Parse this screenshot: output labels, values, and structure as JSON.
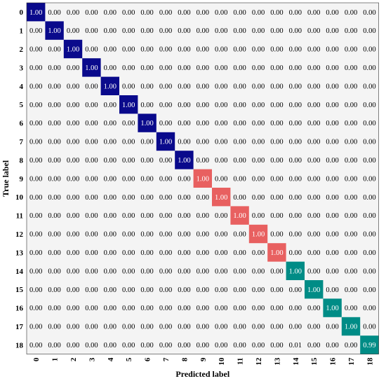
{
  "chart_data": {
    "type": "heatmap",
    "xlabel": "Predicted label",
    "ylabel": "True label",
    "x_categories": [
      "0",
      "1",
      "2",
      "3",
      "4",
      "5",
      "6",
      "7",
      "8",
      "9",
      "10",
      "11",
      "12",
      "13",
      "14",
      "15",
      "16",
      "17",
      "18"
    ],
    "y_categories": [
      "0",
      "1",
      "2",
      "3",
      "4",
      "5",
      "6",
      "7",
      "8",
      "9",
      "10",
      "11",
      "12",
      "13",
      "14",
      "15",
      "16",
      "17",
      "18"
    ],
    "matrix": [
      [
        1.0,
        0.0,
        0.0,
        0.0,
        0.0,
        0.0,
        0.0,
        0.0,
        0.0,
        0.0,
        0.0,
        0.0,
        0.0,
        0.0,
        0.0,
        0.0,
        0.0,
        0.0,
        0.0
      ],
      [
        0.0,
        1.0,
        0.0,
        0.0,
        0.0,
        0.0,
        0.0,
        0.0,
        0.0,
        0.0,
        0.0,
        0.0,
        0.0,
        0.0,
        0.0,
        0.0,
        0.0,
        0.0,
        0.0
      ],
      [
        0.0,
        0.0,
        1.0,
        0.0,
        0.0,
        0.0,
        0.0,
        0.0,
        0.0,
        0.0,
        0.0,
        0.0,
        0.0,
        0.0,
        0.0,
        0.0,
        0.0,
        0.0,
        0.0
      ],
      [
        0.0,
        0.0,
        0.0,
        1.0,
        0.0,
        0.0,
        0.0,
        0.0,
        0.0,
        0.0,
        0.0,
        0.0,
        0.0,
        0.0,
        0.0,
        0.0,
        0.0,
        0.0,
        0.0
      ],
      [
        0.0,
        0.0,
        0.0,
        0.0,
        1.0,
        0.0,
        0.0,
        0.0,
        0.0,
        0.0,
        0.0,
        0.0,
        0.0,
        0.0,
        0.0,
        0.0,
        0.0,
        0.0,
        0.0
      ],
      [
        0.0,
        0.0,
        0.0,
        0.0,
        0.0,
        1.0,
        0.0,
        0.0,
        0.0,
        0.0,
        0.0,
        0.0,
        0.0,
        0.0,
        0.0,
        0.0,
        0.0,
        0.0,
        0.0
      ],
      [
        0.0,
        0.0,
        0.0,
        0.0,
        0.0,
        0.0,
        1.0,
        0.0,
        0.0,
        0.0,
        0.0,
        0.0,
        0.0,
        0.0,
        0.0,
        0.0,
        0.0,
        0.0,
        0.0
      ],
      [
        0.0,
        0.0,
        0.0,
        0.0,
        0.0,
        0.0,
        0.0,
        1.0,
        0.0,
        0.0,
        0.0,
        0.0,
        0.0,
        0.0,
        0.0,
        0.0,
        0.0,
        0.0,
        0.0
      ],
      [
        0.0,
        0.0,
        0.0,
        0.0,
        0.0,
        0.0,
        0.0,
        0.0,
        1.0,
        0.0,
        0.0,
        0.0,
        0.0,
        0.0,
        0.0,
        0.0,
        0.0,
        0.0,
        0.0
      ],
      [
        0.0,
        0.0,
        0.0,
        0.0,
        0.0,
        0.0,
        0.0,
        0.0,
        0.0,
        1.0,
        0.0,
        0.0,
        0.0,
        0.0,
        0.0,
        0.0,
        0.0,
        0.0,
        0.0
      ],
      [
        0.0,
        0.0,
        0.0,
        0.0,
        0.0,
        0.0,
        0.0,
        0.0,
        0.0,
        0.0,
        1.0,
        0.0,
        0.0,
        0.0,
        0.0,
        0.0,
        0.0,
        0.0,
        0.0
      ],
      [
        0.0,
        0.0,
        0.0,
        0.0,
        0.0,
        0.0,
        0.0,
        0.0,
        0.0,
        0.0,
        0.0,
        1.0,
        0.0,
        0.0,
        0.0,
        0.0,
        0.0,
        0.0,
        0.0
      ],
      [
        0.0,
        0.0,
        0.0,
        0.0,
        0.0,
        0.0,
        0.0,
        0.0,
        0.0,
        0.0,
        0.0,
        0.0,
        1.0,
        0.0,
        0.0,
        0.0,
        0.0,
        0.0,
        0.0
      ],
      [
        0.0,
        0.0,
        0.0,
        0.0,
        0.0,
        0.0,
        0.0,
        0.0,
        0.0,
        0.0,
        0.0,
        0.0,
        0.0,
        1.0,
        0.0,
        0.0,
        0.0,
        0.0,
        0.0
      ],
      [
        0.0,
        0.0,
        0.0,
        0.0,
        0.0,
        0.0,
        0.0,
        0.0,
        0.0,
        0.0,
        0.0,
        0.0,
        0.0,
        0.0,
        1.0,
        0.0,
        0.0,
        0.0,
        0.0
      ],
      [
        0.0,
        0.0,
        0.0,
        0.0,
        0.0,
        0.0,
        0.0,
        0.0,
        0.0,
        0.0,
        0.0,
        0.0,
        0.0,
        0.0,
        0.0,
        1.0,
        0.0,
        0.0,
        0.0
      ],
      [
        0.0,
        0.0,
        0.0,
        0.0,
        0.0,
        0.0,
        0.0,
        0.0,
        0.0,
        0.0,
        0.0,
        0.0,
        0.0,
        0.0,
        0.0,
        0.0,
        1.0,
        0.0,
        0.0
      ],
      [
        0.0,
        0.0,
        0.0,
        0.0,
        0.0,
        0.0,
        0.0,
        0.0,
        0.0,
        0.0,
        0.0,
        0.0,
        0.0,
        0.0,
        0.0,
        0.0,
        0.0,
        1.0,
        0.0
      ],
      [
        0.0,
        0.0,
        0.0,
        0.0,
        0.0,
        0.0,
        0.0,
        0.0,
        0.0,
        0.0,
        0.0,
        0.0,
        0.0,
        0.0,
        0.01,
        0.0,
        0.0,
        0.0,
        0.99
      ]
    ],
    "diagonal_colors": [
      "#0a0a8c",
      "#0a0a8c",
      "#0a0a8c",
      "#0a0a8c",
      "#0a0a8c",
      "#0a0a8c",
      "#0a0a8c",
      "#0a0a8c",
      "#0a0a8c",
      "#e86060",
      "#e86060",
      "#e86060",
      "#e86060",
      "#e86060",
      "#008c86",
      "#008c86",
      "#008c86",
      "#008c86",
      "#008c86"
    ],
    "background_color": "#f4f4f4",
    "grid": false
  }
}
